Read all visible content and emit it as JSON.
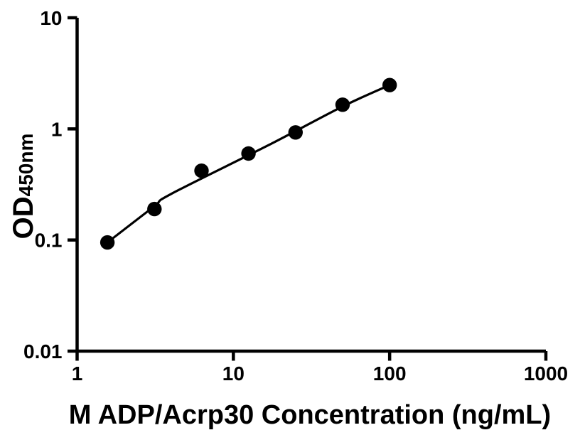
{
  "figure": {
    "background": "#ffffff",
    "axis_color": "#000000"
  },
  "chart_data": {
    "type": "scatter",
    "title": "",
    "x": [
      1.563,
      3.125,
      6.25,
      12.5,
      25,
      50,
      100
    ],
    "y": [
      0.095,
      0.19,
      0.42,
      0.6,
      0.93,
      1.65,
      2.48
    ],
    "trend_line": {
      "x": [
        1.563,
        3.1,
        4.0,
        17,
        50,
        100
      ],
      "y": [
        0.095,
        0.2,
        0.26,
        0.72,
        1.59,
        2.48
      ]
    },
    "xlabel": "M ADP/Acrp30 Concentration (ng/mL)",
    "ylabel_main": "OD",
    "ylabel_sub": "450nm",
    "xscale": "log",
    "yscale": "log",
    "xlim": [
      1,
      1000
    ],
    "ylim": [
      0.01,
      10
    ],
    "xticks": [
      1,
      10,
      100,
      1000
    ],
    "xtick_labels": [
      "1",
      "10",
      "100",
      "1000"
    ],
    "yticks": [
      10,
      1,
      0.1,
      0.01
    ],
    "ytick_labels": [
      "10",
      "1",
      "0.1",
      "0.01"
    ],
    "grid": false,
    "legend": false,
    "marker_color": "#000000",
    "line_color": "#000000"
  }
}
